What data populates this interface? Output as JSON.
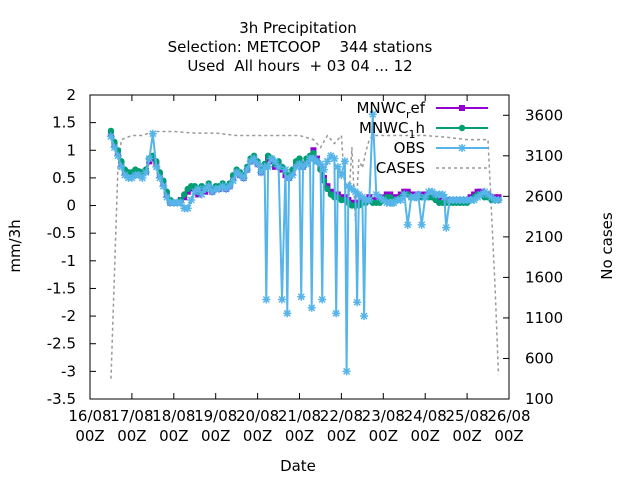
{
  "chart_data": {
    "type": "line",
    "title_lines": [
      "3h Precipitation",
      "Selection: METCOOP    344 stations",
      "Used  All hours  + 03 04 ... 12"
    ],
    "xlabel": "Date",
    "ylabel": "mm/3h",
    "y2label": "No cases",
    "x_unit": "hours since 16/08 00Z",
    "xlim": [
      0,
      240
    ],
    "ylim": [
      -3.5,
      2
    ],
    "y2lim": [
      100,
      3850
    ],
    "x_ticks": [
      {
        "x": 0,
        "l1": "16/08",
        "l2": "00Z"
      },
      {
        "x": 24,
        "l1": "17/08",
        "l2": "00Z"
      },
      {
        "x": 48,
        "l1": "18/08",
        "l2": "00Z"
      },
      {
        "x": 72,
        "l1": "19/08",
        "l2": "00Z"
      },
      {
        "x": 96,
        "l1": "20/08",
        "l2": "00Z"
      },
      {
        "x": 120,
        "l1": "21/08",
        "l2": "00Z"
      },
      {
        "x": 144,
        "l1": "22/08",
        "l2": "00Z"
      },
      {
        "x": 168,
        "l1": "23/08",
        "l2": "00Z"
      },
      {
        "x": 192,
        "l1": "24/08",
        "l2": "00Z"
      },
      {
        "x": 216,
        "l1": "25/08",
        "l2": "00Z"
      },
      {
        "x": 240,
        "l1": "26/08",
        "l2": "00Z"
      }
    ],
    "y_ticks": [
      -3.5,
      -3,
      -2.5,
      -2,
      -1.5,
      -1,
      -0.5,
      0,
      0.5,
      1,
      1.5,
      2
    ],
    "y_tick_labels": [
      "-3.5",
      "-3",
      "-2.5",
      "-2",
      "-1.5",
      "-1",
      "-0.5",
      "0",
      "0.5",
      "1",
      "1.5",
      "2"
    ],
    "y2_ticks": [
      100,
      600,
      1100,
      1600,
      2100,
      2600,
      3100,
      3600
    ],
    "legend_position": "top-right",
    "series": [
      {
        "name": "MNWC_ref",
        "label_main": "MNWC",
        "label_sub": "r",
        "label_tail": "ef",
        "color": "#9400d3",
        "marker": "square",
        "axis": "y1",
        "x": [
          12,
          14,
          16,
          18,
          20,
          22,
          24,
          26,
          28,
          30,
          32,
          34,
          36,
          38,
          40,
          42,
          44,
          46,
          48,
          50,
          52,
          54,
          56,
          58,
          60,
          62,
          64,
          66,
          68,
          70,
          72,
          74,
          76,
          78,
          80,
          82,
          84,
          86,
          88,
          90,
          92,
          94,
          96,
          98,
          100,
          102,
          104,
          106,
          108,
          110,
          112,
          114,
          116,
          118,
          120,
          122,
          124,
          126,
          128,
          130,
          132,
          134,
          136,
          138,
          140,
          142,
          144,
          146,
          148,
          150,
          152,
          154,
          156,
          158,
          160,
          162,
          164,
          166,
          168,
          170,
          172,
          174,
          176,
          178,
          180,
          182,
          184,
          186,
          188,
          190,
          192,
          194,
          196,
          198,
          200,
          202,
          204,
          206,
          208,
          210,
          212,
          214,
          216,
          218,
          220,
          222,
          224,
          226,
          228,
          230,
          232,
          234
        ],
        "y": [
          1.3,
          1.1,
          0.95,
          0.75,
          0.6,
          0.55,
          0.55,
          0.6,
          0.6,
          0.58,
          0.62,
          0.8,
          0.85,
          0.75,
          0.55,
          0.4,
          0.2,
          0.05,
          0.05,
          0.05,
          0.1,
          0.15,
          0.25,
          0.3,
          0.3,
          0.2,
          0.3,
          0.25,
          0.35,
          0.25,
          0.3,
          0.3,
          0.35,
          0.3,
          0.35,
          0.5,
          0.6,
          0.55,
          0.5,
          0.65,
          0.8,
          0.85,
          0.75,
          0.6,
          0.7,
          0.85,
          0.8,
          0.7,
          0.75,
          0.65,
          0.55,
          0.5,
          0.6,
          0.75,
          0.8,
          0.7,
          0.8,
          0.85,
          1.0,
          0.85,
          0.7,
          0.5,
          0.35,
          0.25,
          0.2,
          0.2,
          0.15,
          0.15,
          0.1,
          0.05,
          0.05,
          0.05,
          0.1,
          0.1,
          0.15,
          0.1,
          0.1,
          0.1,
          0.15,
          0.2,
          0.2,
          0.15,
          0.15,
          0.2,
          0.25,
          0.25,
          0.2,
          0.2,
          0.2,
          0.2,
          0.2,
          0.2,
          0.2,
          0.15,
          0.1,
          0.1,
          0.1,
          0.1,
          0.1,
          0.1,
          0.1,
          0.1,
          0.1,
          0.15,
          0.2,
          0.25,
          0.25,
          0.2,
          0.2,
          0.15,
          0.15,
          0.15
        ]
      },
      {
        "name": "MNWC_1h",
        "label_main": "MNWC",
        "label_sub": "1",
        "label_tail": "h",
        "color": "#009e73",
        "marker": "circle",
        "axis": "y1",
        "x": [
          12,
          14,
          16,
          18,
          20,
          22,
          24,
          26,
          28,
          30,
          32,
          34,
          36,
          38,
          40,
          42,
          44,
          46,
          48,
          50,
          52,
          54,
          56,
          58,
          60,
          62,
          64,
          66,
          68,
          70,
          72,
          74,
          76,
          78,
          80,
          82,
          84,
          86,
          88,
          90,
          92,
          94,
          96,
          98,
          100,
          102,
          104,
          106,
          108,
          110,
          112,
          114,
          116,
          118,
          120,
          122,
          124,
          126,
          128,
          130,
          132,
          134,
          136,
          138,
          140,
          142,
          144,
          146,
          148,
          150,
          152,
          154,
          156,
          158,
          160,
          162,
          164,
          166,
          168,
          170,
          172,
          174,
          176,
          178,
          180,
          182,
          184,
          186,
          188,
          190,
          192,
          194,
          196,
          198,
          200,
          202,
          204,
          206,
          208,
          210,
          212,
          214,
          216,
          218,
          220,
          222,
          224,
          226,
          228,
          230,
          232,
          234
        ],
        "y": [
          1.35,
          1.15,
          1.0,
          0.8,
          0.65,
          0.6,
          0.6,
          0.65,
          0.62,
          0.6,
          0.65,
          0.85,
          0.9,
          0.8,
          0.6,
          0.45,
          0.25,
          0.1,
          0.05,
          0.05,
          0.1,
          0.2,
          0.3,
          0.35,
          0.35,
          0.25,
          0.35,
          0.3,
          0.4,
          0.3,
          0.35,
          0.35,
          0.4,
          0.35,
          0.4,
          0.55,
          0.65,
          0.6,
          0.55,
          0.7,
          0.85,
          0.9,
          0.8,
          0.65,
          0.75,
          0.9,
          0.85,
          0.75,
          0.8,
          0.7,
          0.6,
          0.55,
          0.65,
          0.8,
          0.85,
          0.75,
          0.85,
          0.9,
          0.95,
          0.8,
          0.65,
          0.45,
          0.3,
          0.2,
          0.15,
          0.15,
          0.1,
          0.1,
          0.05,
          0.0,
          0.0,
          0.0,
          0.05,
          0.05,
          0.1,
          0.05,
          0.05,
          0.05,
          0.1,
          0.15,
          0.15,
          0.1,
          0.1,
          0.15,
          0.2,
          0.2,
          0.15,
          0.15,
          0.15,
          0.15,
          0.15,
          0.15,
          0.15,
          0.1,
          0.05,
          0.05,
          0.05,
          0.05,
          0.05,
          0.05,
          0.05,
          0.05,
          0.05,
          0.1,
          0.15,
          0.2,
          0.2,
          0.15,
          0.15,
          0.1,
          0.1,
          0.1
        ]
      },
      {
        "name": "OBS",
        "label_main": "OBS",
        "label_sub": "",
        "label_tail": "",
        "color": "#56b4e9",
        "marker": "star",
        "axis": "y1",
        "x": [
          12,
          14,
          16,
          18,
          20,
          22,
          24,
          26,
          28,
          30,
          32,
          34,
          36,
          38,
          40,
          42,
          44,
          46,
          48,
          50,
          52,
          54,
          56,
          58,
          60,
          62,
          64,
          66,
          68,
          70,
          72,
          74,
          76,
          78,
          80,
          82,
          84,
          86,
          88,
          90,
          92,
          94,
          96,
          98,
          100,
          101,
          102,
          104,
          106,
          108,
          110,
          112,
          113,
          114,
          116,
          118,
          120,
          121,
          122,
          124,
          126,
          127,
          128,
          130,
          132,
          133,
          134,
          136,
          138,
          140,
          141,
          142,
          144,
          146,
          147,
          148,
          150,
          152,
          153,
          154,
          156,
          157,
          158,
          160,
          162,
          164,
          166,
          168,
          170,
          172,
          173,
          174,
          176,
          178,
          180,
          182,
          184,
          186,
          187,
          188,
          190,
          192,
          194,
          196,
          198,
          200,
          202,
          203,
          204,
          206,
          208,
          210,
          212,
          214,
          216,
          218,
          220,
          222,
          224,
          226,
          228,
          230,
          232,
          234
        ],
        "y": [
          1.25,
          1.05,
          0.9,
          0.7,
          0.55,
          0.5,
          0.5,
          0.55,
          0.55,
          0.5,
          0.6,
          0.85,
          1.3,
          0.7,
          0.5,
          0.35,
          0.15,
          0.05,
          0.05,
          0.05,
          0.05,
          -0.05,
          -0.05,
          0.1,
          0.25,
          0.3,
          0.2,
          0.3,
          0.35,
          0.25,
          0.3,
          0.3,
          0.35,
          0.3,
          0.35,
          0.45,
          0.6,
          0.55,
          0.5,
          0.65,
          0.8,
          0.85,
          0.75,
          0.6,
          0.7,
          -1.7,
          0.7,
          0.85,
          0.8,
          0.7,
          -1.7,
          0.65,
          -1.95,
          0.5,
          0.55,
          0.7,
          0.75,
          -1.65,
          0.7,
          0.75,
          0.85,
          -1.85,
          0.85,
          0.8,
          0.75,
          -1.7,
          0.65,
          0.8,
          0.9,
          0.85,
          -1.95,
          0.7,
          0.55,
          0.8,
          -3.0,
          0.35,
          0.3,
          0.25,
          -1.75,
          0.2,
          0.15,
          -2.0,
          0.1,
          0.1,
          1.65,
          0.2,
          0.15,
          0.1,
          0.05,
          0.05,
          0.05,
          0.05,
          0.1,
          0.1,
          0.2,
          -0.35,
          0.15,
          0.15,
          0.15,
          0.2,
          -0.35,
          0.15,
          0.25,
          0.25,
          0.2,
          0.2,
          0.2,
          0.15,
          -0.4,
          0.1,
          0.1,
          0.1,
          0.1,
          0.1,
          0.1,
          0.1,
          0.1,
          0.15,
          0.2,
          0.25,
          0.2,
          0.15,
          0.1,
          0.1
        ]
      },
      {
        "name": "CASES",
        "label_main": "CASES",
        "label_sub": "",
        "label_tail": "",
        "color": "#999999",
        "marker": "none",
        "dashed": true,
        "axis": "y2",
        "x": [
          12,
          16,
          18,
          24,
          30,
          36,
          48,
          60,
          72,
          84,
          96,
          108,
          120,
          128,
          132,
          136,
          140,
          144,
          146,
          148,
          150,
          152,
          154,
          156,
          158,
          160,
          162,
          168,
          180,
          192,
          204,
          216,
          228,
          232,
          234
        ],
        "y": [
          350,
          2950,
          3300,
          3350,
          3350,
          3400,
          3400,
          3380,
          3380,
          3350,
          3350,
          3350,
          3350,
          3300,
          3200,
          3350,
          3250,
          3350,
          2700,
          2500,
          3200,
          2300,
          3050,
          2950,
          3150,
          3300,
          3350,
          3350,
          3350,
          3350,
          3330,
          3300,
          3300,
          1500,
          400
        ]
      }
    ]
  }
}
